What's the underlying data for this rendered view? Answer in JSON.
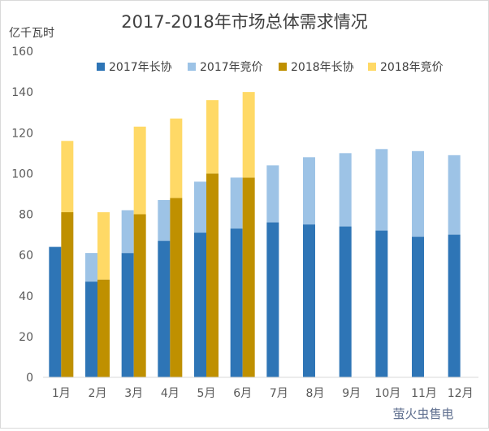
{
  "chart_data": {
    "type": "bar",
    "title": "2017-2018年市场总体需求情况",
    "ylabel": "亿千瓦时",
    "xlabel": "",
    "ylim": [
      0,
      160
    ],
    "yticks": [
      0,
      20,
      40,
      60,
      80,
      100,
      120,
      140,
      160
    ],
    "grid": false,
    "legend_position": "top",
    "categories": [
      "1月",
      "2月",
      "3月",
      "4月",
      "5月",
      "6月",
      "7月",
      "8月",
      "9月",
      "10月",
      "11月",
      "12月"
    ],
    "groups": [
      {
        "year": "2017",
        "segments": [
          {
            "name": "2017年长协",
            "color": "#2E75B6",
            "values": [
              64,
              47,
              61,
              67,
              71,
              73,
              76,
              75,
              74,
              72,
              69,
              70
            ]
          },
          {
            "name": "2017年竞价",
            "color": "#9DC3E6",
            "values": [
              0,
              14,
              21,
              20,
              25,
              25,
              28,
              33,
              36,
              40,
              42,
              39
            ]
          }
        ]
      },
      {
        "year": "2018",
        "segments": [
          {
            "name": "2018年长协",
            "color": "#BF9000",
            "values": [
              81,
              48,
              80,
              88,
              100,
              98,
              null,
              null,
              null,
              null,
              null,
              null
            ]
          },
          {
            "name": "2018年竞价",
            "color": "#FFD966",
            "values": [
              35,
              33,
              43,
              39,
              36,
              42,
              null,
              null,
              null,
              null,
              null,
              null
            ]
          }
        ]
      }
    ]
  },
  "watermark": "萤火虫售电"
}
